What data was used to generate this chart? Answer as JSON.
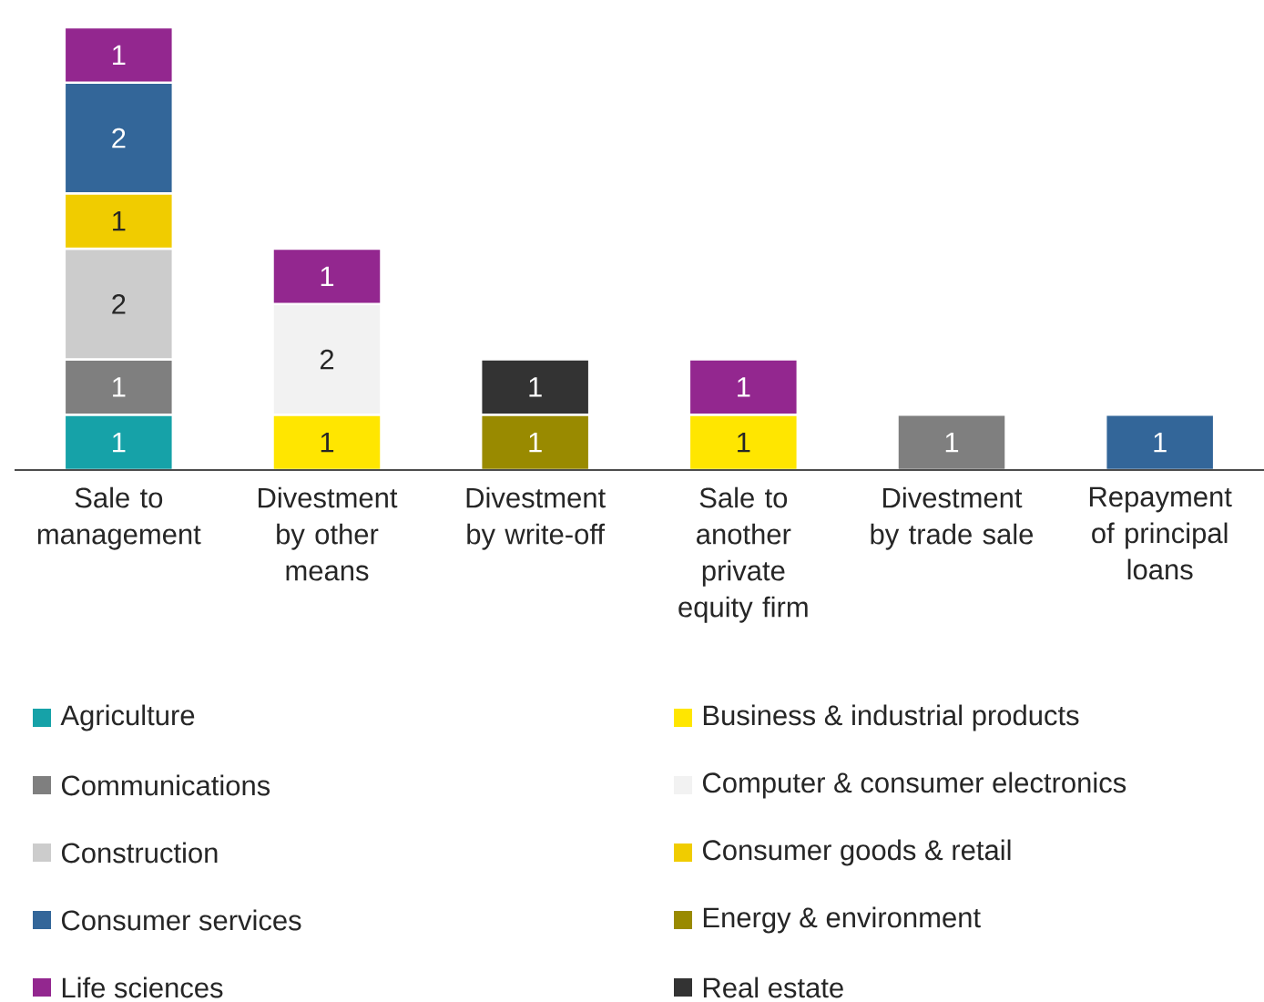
{
  "chart_data": {
    "type": "bar",
    "stacked": true,
    "data_labels": true,
    "legend": "bottom",
    "categories": [
      "Sale to management",
      "Divestment by other means",
      "Divestment by write-off",
      "Sale to another private equity firm",
      "Divestment by trade sale",
      "Repayment of principal loans"
    ],
    "series": [
      {
        "name": "Agriculture",
        "color": "#16a2a8",
        "values": [
          1,
          null,
          null,
          null,
          null,
          null
        ]
      },
      {
        "name": "Business & industrial products",
        "color": "#ffe600",
        "values": [
          null,
          1,
          null,
          1,
          null,
          null
        ]
      },
      {
        "name": "Communications",
        "color": "#7f7f7f",
        "values": [
          1,
          null,
          null,
          null,
          1,
          null
        ]
      },
      {
        "name": "Computer & consumer electronics",
        "color": "#f2f2f2",
        "values": [
          null,
          2,
          null,
          null,
          null,
          null
        ]
      },
      {
        "name": "Construction",
        "color": "#cccccc",
        "values": [
          2,
          null,
          null,
          null,
          null,
          null
        ]
      },
      {
        "name": "Consumer goods & retail",
        "color": "#f0cc00",
        "values": [
          1,
          null,
          null,
          null,
          null,
          null
        ]
      },
      {
        "name": "Consumer services",
        "color": "#336699",
        "values": [
          2,
          null,
          null,
          null,
          null,
          1
        ]
      },
      {
        "name": "Energy & environment",
        "color": "#998a00",
        "values": [
          null,
          null,
          1,
          null,
          null,
          null
        ]
      },
      {
        "name": "Life sciences",
        "color": "#93278f",
        "values": [
          1,
          1,
          null,
          1,
          null,
          null
        ]
      },
      {
        "name": "Real estate",
        "color": "#333333",
        "values": [
          null,
          null,
          1,
          null,
          null,
          null
        ]
      }
    ]
  }
}
